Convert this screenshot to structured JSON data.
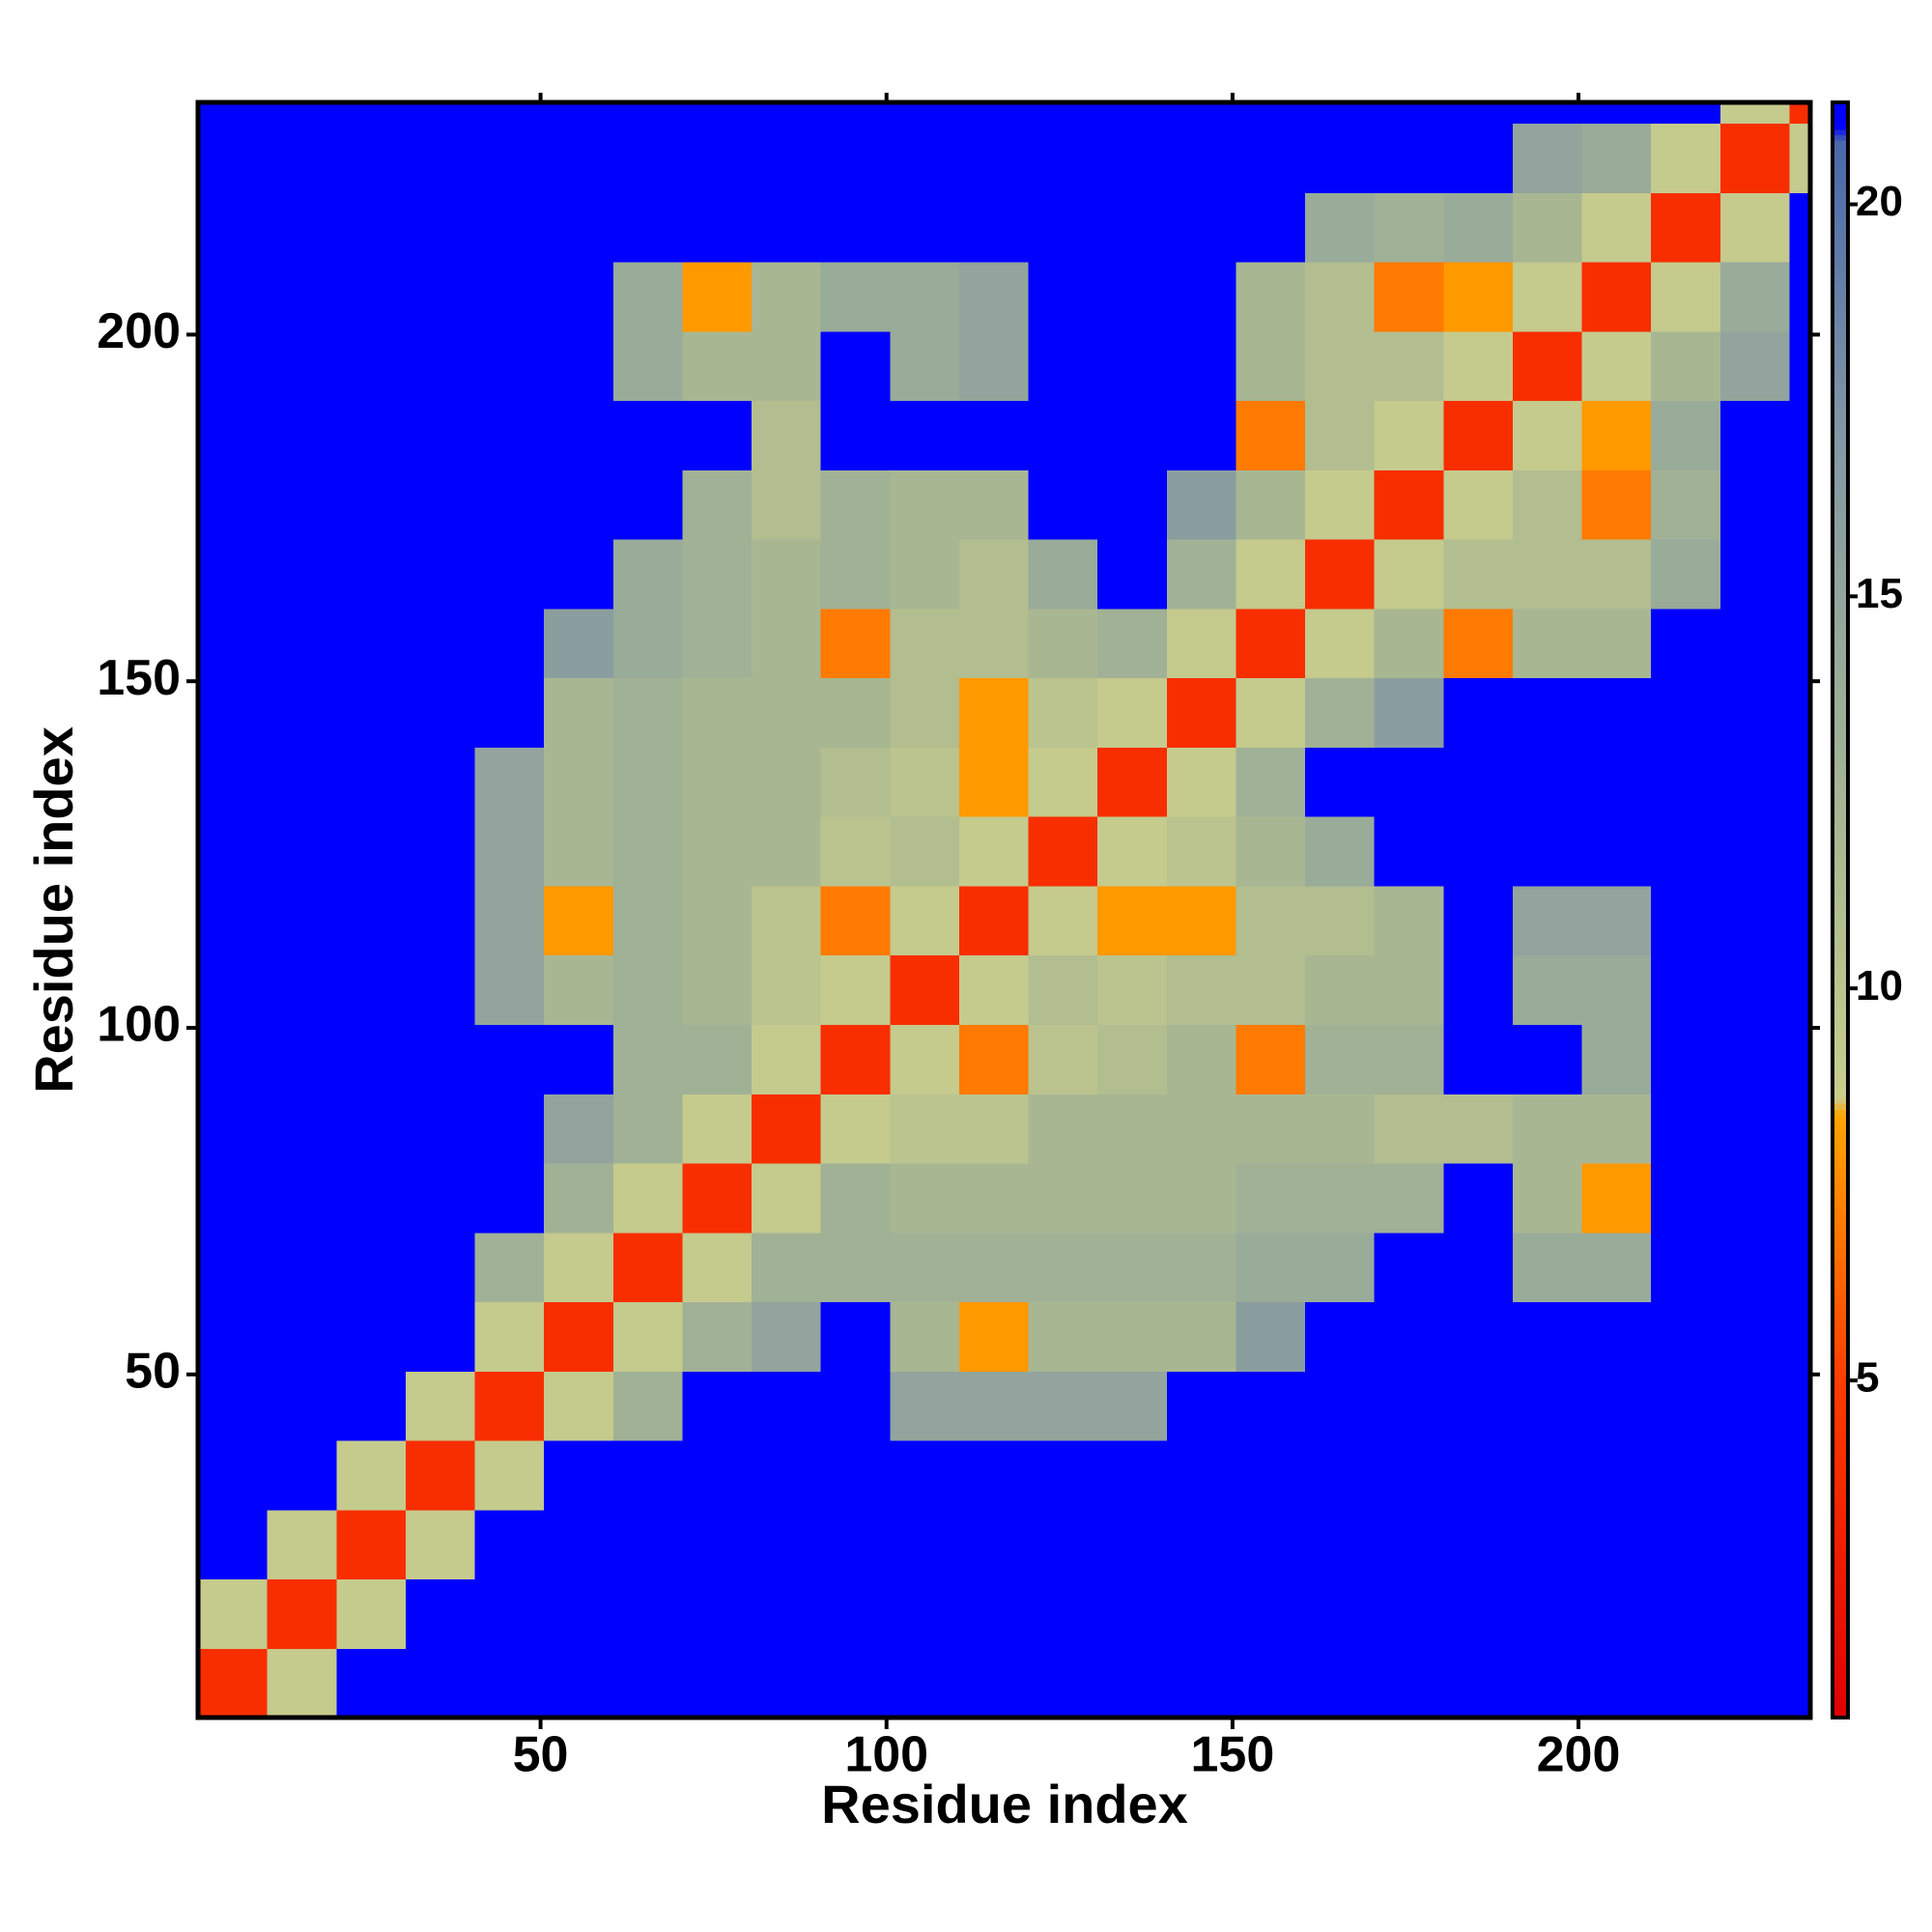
{
  "chart_data": {
    "type": "heatmap",
    "xlabel": "Residue index",
    "ylabel": "Residue index",
    "xlim": [
      0.5,
      233.5
    ],
    "ylim": [
      0.5,
      233.5
    ],
    "xticks": [
      50,
      100,
      150,
      200
    ],
    "yticks": [
      50,
      100,
      150,
      200
    ],
    "symmetric": true,
    "bin_edges": [
      0.5,
      10.5,
      20.5,
      30.5,
      40.5,
      50.5,
      60.5,
      70.5,
      80.5,
      90.5,
      100.5,
      110.5,
      120.5,
      130.5,
      140.5,
      150.5,
      160.5,
      170.5,
      180.5,
      190.5,
      200.5,
      210.5,
      220.5,
      230.5,
      233.5
    ],
    "z": [
      [
        4,
        9,
        21,
        21,
        21,
        21,
        21,
        21,
        21,
        21,
        21,
        21,
        21,
        21,
        21,
        21,
        21,
        21,
        21,
        21,
        21,
        21,
        21,
        21
      ],
      [
        4,
        9,
        21,
        21,
        21,
        21,
        21,
        21,
        21,
        21,
        21,
        21,
        21,
        21,
        21,
        21,
        21,
        21,
        21,
        21,
        21,
        21,
        21
      ],
      [
        4,
        9,
        21,
        21,
        21,
        21,
        21,
        21,
        21,
        21,
        21,
        21,
        21,
        21,
        21,
        21,
        21,
        21,
        21,
        21,
        21,
        21
      ],
      [
        4,
        9,
        21,
        21,
        21,
        21,
        21,
        21,
        21,
        21,
        21,
        21,
        21,
        21,
        21,
        21,
        21,
        21,
        21,
        21,
        21
      ],
      [
        4,
        9,
        13,
        21,
        21,
        21,
        15,
        15,
        15,
        15,
        21,
        21,
        21,
        21,
        21,
        21,
        21,
        21,
        21,
        21
      ],
      [
        4,
        9,
        13,
        15,
        21,
        12,
        8,
        12,
        12,
        12,
        16,
        21,
        21,
        21,
        21,
        21,
        21,
        21,
        21
      ],
      [
        4,
        9,
        13,
        13,
        13,
        13,
        13,
        13,
        13,
        14,
        14,
        21,
        21,
        14,
        14,
        21,
        21,
        21
      ],
      [
        4,
        9,
        13,
        12,
        12,
        12,
        12,
        12,
        13,
        13,
        13,
        21,
        12,
        8,
        21,
        21,
        21
      ],
      [
        4,
        9,
        10,
        10,
        12,
        12,
        12,
        12,
        12,
        11,
        11,
        12,
        12,
        21,
        21,
        21
      ],
      [
        4,
        9,
        7,
        10,
        11,
        12,
        7,
        13,
        13,
        21,
        21,
        14,
        21,
        21,
        21
      ],
      [
        4,
        9,
        11,
        10,
        11,
        11,
        12,
        12,
        21,
        14,
        14,
        21,
        21,
        21
      ],
      [
        4,
        9,
        8,
        8,
        11,
        11,
        12,
        21,
        15,
        15,
        21,
        21,
        21
      ],
      [
        4,
        9,
        10,
        12,
        14,
        21,
        21,
        21,
        21,
        21,
        21,
        21
      ],
      [
        4,
        9,
        13,
        21,
        21,
        21,
        21,
        21,
        21,
        21,
        21
      ],
      [
        4,
        9,
        13,
        16,
        21,
        21,
        21,
        21,
        21,
        21
      ],
      [
        4,
        9,
        12,
        7,
        12,
        12,
        21,
        21,
        21
      ],
      [
        4,
        9,
        11,
        11,
        11,
        14,
        21,
        21
      ],
      [
        4,
        9,
        11,
        7,
        13,
        21,
        21
      ],
      [
        4,
        9,
        8,
        14,
        21,
        21
      ],
      [
        4,
        9,
        12,
        15,
        21
      ],
      [
        4,
        9,
        14,
        21
      ],
      [
        4,
        9,
        21
      ],
      [
        4,
        9
      ],
      [
        4
      ]
    ],
    "zlim": [
      0.7,
      21.3
    ],
    "zticks": [
      5,
      10,
      15,
      20
    ],
    "colorscale": [
      [
        0.7,
        "#e00000"
      ],
      [
        5,
        "#ff3c00"
      ],
      [
        8.4,
        "#ffa500"
      ],
      [
        8.6,
        "#c9cd8c"
      ],
      [
        12,
        "#a8b792"
      ],
      [
        17,
        "#8398a4"
      ],
      [
        20.8,
        "#4a68aa"
      ],
      [
        21,
        "#0000ff"
      ],
      [
        21.3,
        "#0000ff"
      ]
    ]
  }
}
